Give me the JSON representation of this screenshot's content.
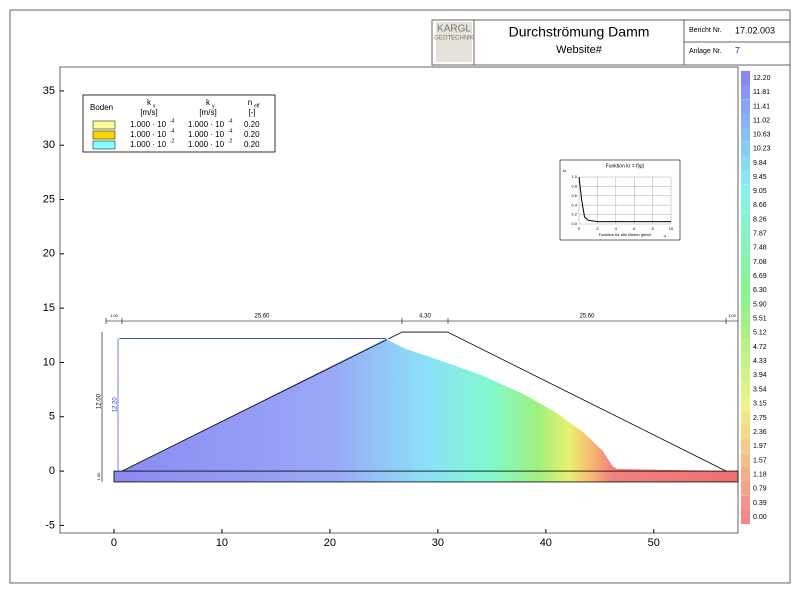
{
  "header": {
    "logo_top": "KARGL",
    "logo_bottom": "GEOTECHNIK",
    "title": "Durchströmung Damm",
    "subtitle": "Website#",
    "report_label": "Bericht Nr.",
    "report_value": "17.02.003",
    "annex_label": "Anlage Nr.",
    "annex_value": "7"
  },
  "chart_data": {
    "type": "seepage",
    "xlim": [
      -5,
      57.8
    ],
    "ylim": [
      -5.7,
      37.2
    ],
    "xticks": [
      0,
      10,
      20,
      30,
      40,
      50
    ],
    "yticks": [
      -5,
      0,
      5,
      10,
      15,
      20,
      25,
      30,
      35
    ],
    "dam": {
      "x": [
        0.74,
        26.7,
        30.9,
        56.7
      ],
      "y": [
        0,
        12.8,
        12.8,
        0
      ]
    },
    "foundation": {
      "x": [
        0,
        57.8
      ],
      "y": [
        -1,
        0
      ]
    },
    "water_level": 12.2,
    "phreatic": {
      "x": [
        25.2,
        27,
        30,
        34,
        38,
        41,
        43.5,
        45.3,
        46.2,
        46.7
      ],
      "y": [
        12.2,
        11.3,
        10.3,
        8.9,
        7.1,
        5.4,
        3.6,
        1.9,
        0.5,
        0.2
      ]
    },
    "dimensions": [
      "1.00",
      "25.60",
      "4.30",
      "25.60",
      "1.00"
    ],
    "vertical_dimensions": [
      "12.00",
      "12.20",
      "1.00"
    ],
    "colorbar": [
      {
        "value": 12.2,
        "label": "12.20"
      },
      11.81,
      11.41,
      11.02,
      10.63,
      10.23,
      9.84,
      9.45,
      9.05,
      8.66,
      8.26,
      7.87,
      7.48,
      7.08,
      6.69,
      {
        "value": 6.3,
        "label": "6.30"
      },
      {
        "value": 5.9,
        "label": "5.90"
      },
      5.51,
      5.12,
      4.72,
      4.33,
      3.94,
      3.54,
      3.15,
      2.75,
      2.36,
      1.97,
      1.57,
      1.18,
      0.79,
      0.39,
      {
        "value": 0,
        "label": "0.00"
      }
    ],
    "legend": {
      "header": [
        "Boden",
        "k",
        "x",
        "[m/s]",
        "k",
        "y",
        "[m/s]",
        "n",
        "eff",
        "[-]"
      ],
      "rows": [
        {
          "color": "#ffff99",
          "kx": "1.000 · 10",
          "kx_exp": "-4",
          "ky": "1.000 · 10",
          "ky_exp": "-4",
          "n": "0.20"
        },
        {
          "color": "#ffd700",
          "kx": "1.000 · 10",
          "kx_exp": "-4",
          "ky": "1.000 · 10",
          "ky_exp": "-4",
          "n": "0.20"
        },
        {
          "color": "#80ffff",
          "kx": "1.000 · 10",
          "kx_exp": "-2",
          "ky": "1.000 · 10",
          "ky_exp": "-2",
          "n": "0.20"
        }
      ]
    },
    "inset": {
      "title": "Funktion kr = f(ψ)",
      "ylabel": "kr",
      "xlabel": "Funktion für alle Böden gleich",
      "xunit": "-ψ",
      "xlim": [
        0,
        10
      ],
      "ylim": [
        0,
        1
      ],
      "xticks": [
        0,
        2,
        4,
        6,
        8,
        10
      ],
      "yticks": [
        {
          "value": 0,
          "label": "0.0"
        },
        0.2,
        0.4,
        0.6,
        0.8,
        {
          "value": 1,
          "label": "1.0"
        }
      ],
      "x": [
        0,
        0.3,
        0.6,
        1,
        2,
        10
      ],
      "y": [
        1,
        0.5,
        0.15,
        0.08,
        0.05,
        0.05
      ]
    }
  }
}
